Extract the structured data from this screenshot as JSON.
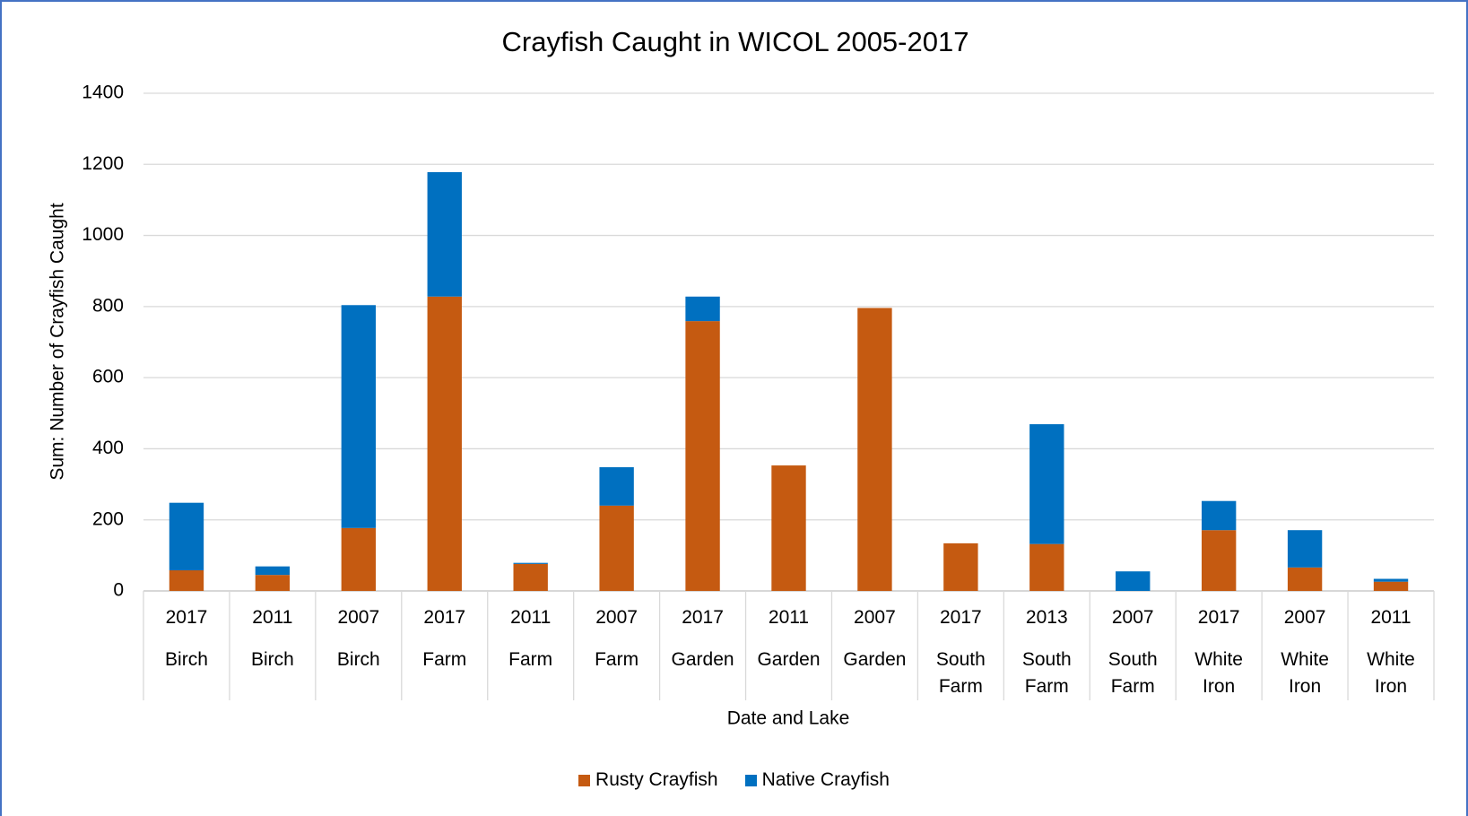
{
  "chart_data": {
    "type": "stacked_bar",
    "title": "Crayfish Caught in WICOL 2005-2017",
    "x_label": "Date and Lake",
    "y_label": "Sum: Number of Crayfish Caught",
    "categories": [
      "2017",
      "2011",
      "2007",
      "2017",
      "2011",
      "2007",
      "2017",
      "2011",
      "2007",
      "2017",
      "2013",
      "2007",
      "2017",
      "2007",
      "2011"
    ],
    "category_groups": [
      "Birch",
      "Birch",
      "Birch",
      "Farm",
      "Farm",
      "Farm",
      "Garden",
      "Garden",
      "Garden",
      "South Farm",
      "South Farm",
      "South Farm",
      "White Iron",
      "White Iron",
      "White Iron"
    ],
    "series": [
      {
        "name": "Rusty Crayfish",
        "color": "#c55a11",
        "values": [
          58,
          45,
          177,
          828,
          76,
          240,
          759,
          353,
          796,
          134,
          132,
          0,
          171,
          66,
          26
        ]
      },
      {
        "name": "Native Crayfish",
        "color": "#0070c0",
        "values": [
          190,
          24,
          627,
          350,
          3,
          108,
          69,
          0,
          0,
          0,
          337,
          55,
          82,
          105,
          8
        ]
      }
    ],
    "ylim": [
      0,
      1400
    ],
    "yticks": [
      0,
      200,
      400,
      600,
      800,
      1000,
      1200,
      1400
    ],
    "grid": true,
    "legend": "bottom"
  }
}
